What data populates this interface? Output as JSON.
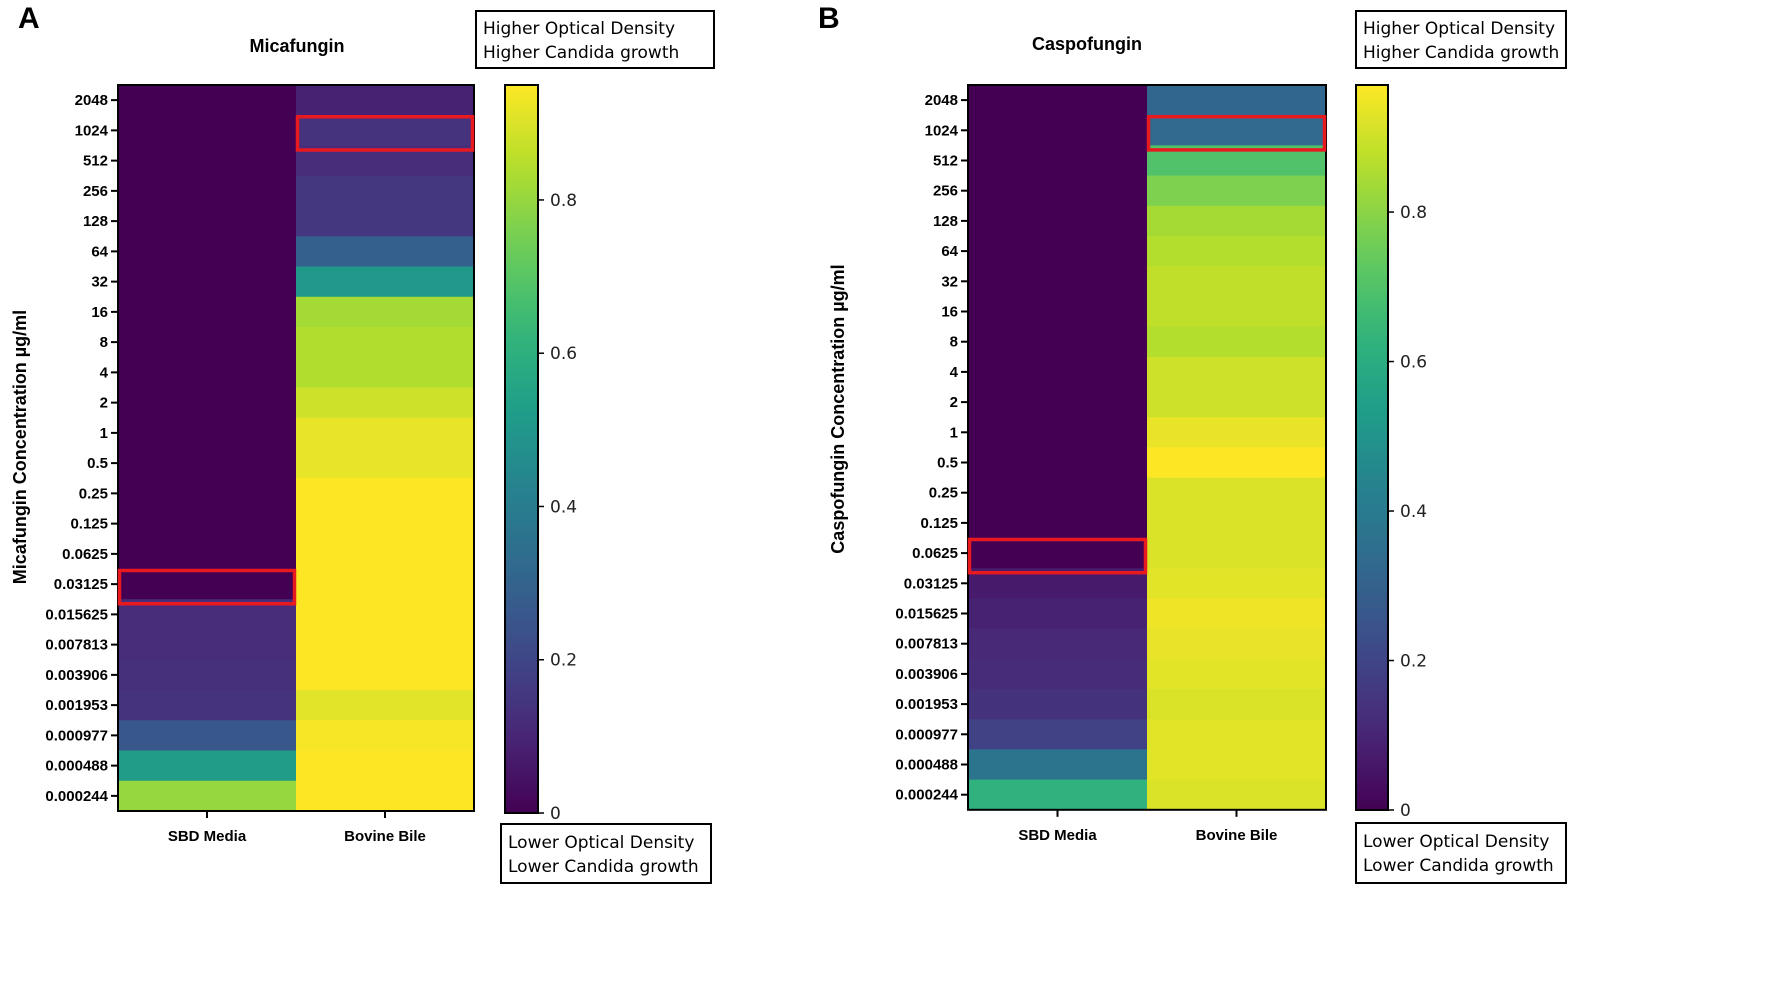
{
  "chart_data": [
    {
      "type": "heatmap",
      "panel_label": "A",
      "title": "Micafungin",
      "ylabel": "Micafungin Concentration µg/ml",
      "xlabel": "",
      "columns": [
        "SBD Media",
        "Bovine Bile"
      ],
      "rows": [
        "2048",
        "1024",
        "512",
        "256",
        "128",
        "64",
        "32",
        "16",
        "8",
        "4",
        "2",
        "1",
        "0.5",
        "0.25",
        "0.125",
        "0.0625",
        "0.03125",
        "0.015625",
        "0.007813",
        "0.003906",
        "0.001953",
        "0.000977",
        "0.000488",
        "0.000244"
      ],
      "series": [
        {
          "name": "SBD Media",
          "values": [
            0,
            0,
            0,
            0,
            0,
            0,
            0,
            0,
            0,
            0,
            0,
            0,
            0,
            0,
            0,
            0,
            0,
            0.12,
            0.12,
            0.13,
            0.14,
            0.26,
            0.52,
            0.8
          ]
        },
        {
          "name": "Bovine Bile",
          "values": [
            0.09,
            0.14,
            0.12,
            0.15,
            0.15,
            0.29,
            0.51,
            0.82,
            0.84,
            0.84,
            0.88,
            0.92,
            0.92,
            0.96,
            0.95,
            0.95,
            0.97,
            0.95,
            0.95,
            0.95,
            0.91,
            0.94,
            0.97,
            0.97
          ]
        }
      ],
      "highlight": [
        {
          "column": "Bovine Bile",
          "row": "1024"
        },
        {
          "column": "SBD Media",
          "row": "0.03125"
        }
      ],
      "colorbar": {
        "range": [
          0,
          0.95
        ],
        "ticks": [
          0,
          0.2,
          0.4,
          0.6,
          0.8
        ],
        "tick_labels": [
          "0",
          "0.2",
          "0.4",
          "0.6",
          "0.8"
        ],
        "top_note": [
          "Higher Optical Density",
          "Higher Candida growth"
        ],
        "bottom_note": [
          "Lower Optical Density",
          "Lower Candida growth"
        ]
      }
    },
    {
      "type": "heatmap",
      "panel_label": "B",
      "title": "Caspofungin",
      "ylabel": "Caspofungin Concentration µg/ml",
      "xlabel": "",
      "columns": [
        "SBD Media",
        "Bovine Bile"
      ],
      "rows": [
        "2048",
        "1024",
        "512",
        "256",
        "128",
        "64",
        "32",
        "16",
        "8",
        "4",
        "2",
        "1",
        "0.5",
        "0.25",
        "0.125",
        "0.0625",
        "0.03125",
        "0.015625",
        "0.007813",
        "0.003906",
        "0.001953",
        "0.000977",
        "0.000488",
        "0.000244"
      ],
      "series": [
        {
          "name": "SBD Media",
          "values": [
            0,
            0,
            0,
            0,
            0,
            0,
            0,
            0,
            0,
            0,
            0,
            0,
            0,
            0,
            0,
            0,
            0.07,
            0.09,
            0.11,
            0.12,
            0.14,
            0.19,
            0.37,
            0.62
          ]
        },
        {
          "name": "Bovine Bile",
          "values": [
            0.32,
            0.33,
            0.7,
            0.78,
            0.84,
            0.86,
            0.88,
            0.88,
            0.86,
            0.9,
            0.9,
            0.94,
            0.97,
            0.92,
            0.92,
            0.92,
            0.93,
            0.95,
            0.94,
            0.93,
            0.92,
            0.93,
            0.93,
            0.92
          ]
        }
      ],
      "highlight": [
        {
          "column": "Bovine Bile",
          "row": "1024"
        },
        {
          "column": "SBD Media",
          "row": "0.0625"
        }
      ],
      "colorbar": {
        "range": [
          0,
          0.97
        ],
        "ticks": [
          0,
          0.2,
          0.4,
          0.6,
          0.8
        ],
        "tick_labels": [
          "0",
          "0.2",
          "0.4",
          "0.6",
          "0.8"
        ],
        "top_note": [
          "Higher Optical Density",
          "Higher Candida growth"
        ],
        "bottom_note": [
          "Lower Optical Density",
          "Lower Candida growth"
        ]
      }
    }
  ],
  "colors": {
    "highlight": "#e8191f",
    "frame": "#000000"
  }
}
